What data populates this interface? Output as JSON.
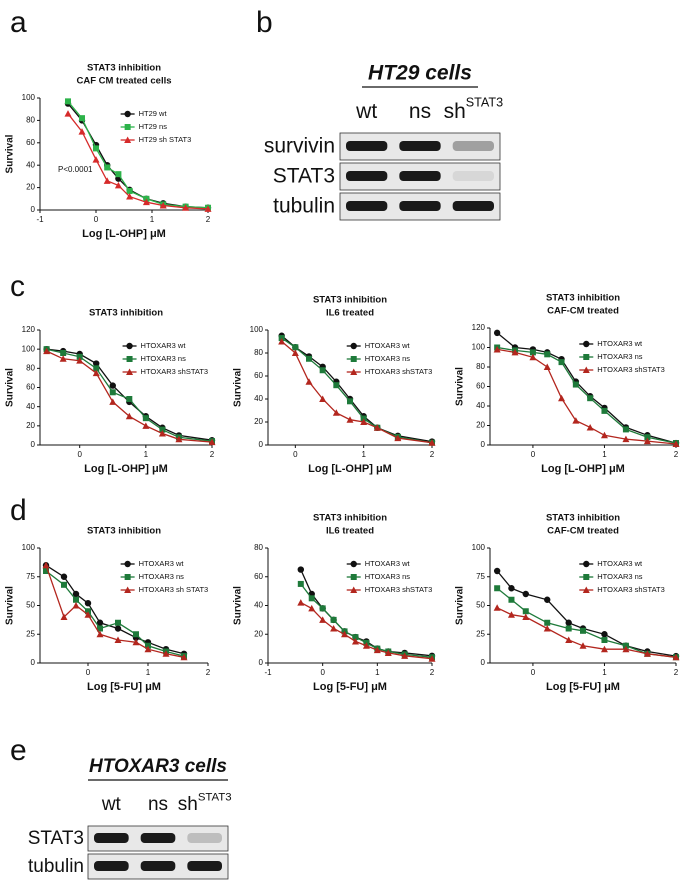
{
  "panels": [
    "a",
    "b",
    "c",
    "d",
    "e"
  ],
  "chart_data": [
    {
      "type": "line",
      "title": [
        "STAT3 inhibition",
        "CAF CM treated cells"
      ],
      "x_label": "Log [L-OHP] μM",
      "y_label": "Survival",
      "annotation": "P<0.0001",
      "x": [
        -0.5,
        -0.25,
        0,
        0.2,
        0.4,
        0.6,
        0.9,
        1.2,
        1.6,
        2.0
      ],
      "xlim": [
        -1,
        2
      ],
      "xticks": [
        -1,
        0,
        1,
        2
      ],
      "ylim": [
        0,
        100
      ],
      "yticks": [
        0,
        20,
        40,
        60,
        80,
        100
      ],
      "series": [
        {
          "name": "HT29 wt",
          "color": "#111111",
          "marker": "circle",
          "values": [
            95,
            80,
            58,
            40,
            28,
            18,
            10,
            6,
            3,
            2
          ]
        },
        {
          "name": "HT29 ns",
          "color": "#2db34a",
          "marker": "square",
          "values": [
            97,
            82,
            55,
            38,
            32,
            17,
            10,
            5,
            3,
            2
          ]
        },
        {
          "name": "HT29 sh STAT3",
          "color": "#d62a2a",
          "marker": "triangle",
          "values": [
            86,
            70,
            45,
            26,
            22,
            12,
            7,
            4,
            2,
            1
          ]
        }
      ]
    },
    {
      "type": "line",
      "title": [
        "STAT3 inhibition"
      ],
      "x_label": "Log [L-OHP] μM",
      "y_label": "Survival",
      "x": [
        -0.5,
        -0.25,
        0,
        0.25,
        0.5,
        0.75,
        1,
        1.25,
        1.5,
        2
      ],
      "xlim": [
        -0.6,
        2
      ],
      "xticks": [
        0,
        1,
        2
      ],
      "ylim": [
        0,
        120
      ],
      "yticks": [
        0,
        20,
        40,
        60,
        80,
        100,
        120
      ],
      "series": [
        {
          "name": "HTOXAR3 wt",
          "color": "#111111",
          "marker": "circle",
          "values": [
            100,
            98,
            95,
            85,
            62,
            45,
            30,
            18,
            10,
            5
          ]
        },
        {
          "name": "HTOXAR3 ns",
          "color": "#1e7a3a",
          "marker": "square",
          "values": [
            100,
            96,
            92,
            80,
            55,
            48,
            28,
            16,
            8,
            4
          ]
        },
        {
          "name": "HTOXAR3 shSTAT3",
          "color": "#b3261e",
          "marker": "triangle",
          "values": [
            98,
            90,
            88,
            75,
            45,
            30,
            20,
            12,
            6,
            3
          ]
        }
      ]
    },
    {
      "type": "line",
      "title": [
        "STAT3 inhibition",
        "IL6 treated"
      ],
      "x_label": "Log [L-OHP] μM",
      "y_label": "Survival",
      "x": [
        -0.2,
        0,
        0.2,
        0.4,
        0.6,
        0.8,
        1.0,
        1.2,
        1.5,
        2.0
      ],
      "xlim": [
        -0.4,
        2
      ],
      "xticks": [
        0,
        1,
        2
      ],
      "ylim": [
        0,
        100
      ],
      "yticks": [
        0,
        20,
        40,
        60,
        80,
        100
      ],
      "series": [
        {
          "name": "HTOXAR3 wt",
          "color": "#111111",
          "marker": "circle",
          "values": [
            95,
            85,
            77,
            68,
            55,
            40,
            25,
            15,
            8,
            3
          ]
        },
        {
          "name": "HTOXAR3 ns",
          "color": "#1e7a3a",
          "marker": "square",
          "values": [
            93,
            85,
            75,
            65,
            52,
            38,
            23,
            15,
            7,
            2
          ]
        },
        {
          "name": "HTOXAR3 shSTAT3",
          "color": "#b3261e",
          "marker": "triangle",
          "values": [
            90,
            80,
            55,
            40,
            28,
            22,
            20,
            15,
            6,
            2
          ]
        }
      ]
    },
    {
      "type": "line",
      "title": [
        "STAT3 inhibition",
        "CAF-CM treated"
      ],
      "x_label": "Log [L-OHP] μM",
      "y_label": "Survival",
      "x": [
        -0.5,
        -0.25,
        0,
        0.2,
        0.4,
        0.6,
        0.8,
        1.0,
        1.3,
        1.6,
        2.0
      ],
      "xlim": [
        -0.6,
        2
      ],
      "xticks": [
        0,
        1,
        2
      ],
      "ylim": [
        0,
        120
      ],
      "yticks": [
        0,
        20,
        40,
        60,
        80,
        100,
        120
      ],
      "series": [
        {
          "name": "HTOXAR3 wt",
          "color": "#111111",
          "marker": "circle",
          "values": [
            115,
            100,
            98,
            95,
            88,
            65,
            50,
            38,
            18,
            10,
            2
          ]
        },
        {
          "name": "HTOXAR3 ns",
          "color": "#1e7a3a",
          "marker": "square",
          "values": [
            100,
            97,
            95,
            93,
            85,
            62,
            48,
            35,
            16,
            8,
            2
          ]
        },
        {
          "name": "HTOXAR3 shSTAT3",
          "color": "#b3261e",
          "marker": "triangle",
          "values": [
            98,
            95,
            90,
            80,
            48,
            25,
            18,
            10,
            6,
            4,
            1
          ]
        }
      ]
    },
    {
      "type": "line",
      "title": [
        "STAT3 inhibition"
      ],
      "x_label": "Log [5-FU] μM",
      "y_label": "Survival",
      "x": [
        -0.7,
        -0.4,
        -0.2,
        0,
        0.2,
        0.5,
        0.8,
        1.0,
        1.3,
        1.6
      ],
      "xlim": [
        -0.8,
        2
      ],
      "xticks": [
        0,
        1,
        2
      ],
      "ylim": [
        0,
        100
      ],
      "yticks": [
        0,
        25,
        50,
        75,
        100
      ],
      "series": [
        {
          "name": "HTOXAR3 wt",
          "color": "#111111",
          "marker": "circle",
          "values": [
            85,
            75,
            60,
            52,
            35,
            30,
            22,
            18,
            12,
            8
          ]
        },
        {
          "name": "HTOXAR3 ns",
          "color": "#1e7a3a",
          "marker": "square",
          "values": [
            80,
            68,
            55,
            45,
            30,
            35,
            25,
            15,
            10,
            6
          ]
        },
        {
          "name": "HTOXAR3 sh STAT3",
          "color": "#b3261e",
          "marker": "triangle",
          "values": [
            85,
            40,
            50,
            42,
            25,
            20,
            18,
            12,
            8,
            5
          ]
        }
      ]
    },
    {
      "type": "line",
      "title": [
        "STAT3 inhibition",
        "IL6 treated"
      ],
      "x_label": "Log [5-FU] μM",
      "y_label": "Survival",
      "x": [
        -0.4,
        -0.2,
        0,
        0.2,
        0.4,
        0.6,
        0.8,
        1.0,
        1.2,
        1.5,
        2.0
      ],
      "xlim": [
        -1,
        2
      ],
      "xticks": [
        -1,
        0,
        1,
        2
      ],
      "ylim": [
        0,
        80
      ],
      "yticks": [
        0,
        20,
        40,
        60,
        80
      ],
      "series": [
        {
          "name": "HTOXAR3 wt",
          "color": "#111111",
          "marker": "circle",
          "values": [
            65,
            48,
            38,
            30,
            22,
            18,
            15,
            10,
            8,
            7,
            5
          ]
        },
        {
          "name": "HTOXAR3 ns",
          "color": "#1e7a3a",
          "marker": "square",
          "values": [
            55,
            45,
            38,
            30,
            22,
            18,
            14,
            10,
            8,
            6,
            4
          ]
        },
        {
          "name": "HTOXAR3 shSTAT3",
          "color": "#b3261e",
          "marker": "triangle",
          "values": [
            42,
            38,
            30,
            24,
            20,
            15,
            12,
            9,
            7,
            5,
            3
          ]
        }
      ]
    },
    {
      "type": "line",
      "title": [
        "STAT3 inhibition",
        "CAF-CM treated"
      ],
      "x_label": "Log [5-FU] μM",
      "y_label": "Survival",
      "x": [
        -0.5,
        -0.3,
        -0.1,
        0.2,
        0.5,
        0.7,
        1.0,
        1.3,
        1.6,
        2.0
      ],
      "xlim": [
        -0.6,
        2
      ],
      "xticks": [
        0,
        1,
        2
      ],
      "ylim": [
        0,
        100
      ],
      "yticks": [
        0,
        25,
        50,
        75,
        100
      ],
      "series": [
        {
          "name": "HTOXAR3 wt",
          "color": "#111111",
          "marker": "circle",
          "values": [
            80,
            65,
            60,
            55,
            35,
            30,
            25,
            15,
            10,
            6
          ]
        },
        {
          "name": "HTOXAR3 ns",
          "color": "#1e7a3a",
          "marker": "square",
          "values": [
            65,
            55,
            45,
            35,
            30,
            28,
            20,
            15,
            8,
            5
          ]
        },
        {
          "name": "HTOXAR3 shSTAT3",
          "color": "#b3261e",
          "marker": "triangle",
          "values": [
            48,
            42,
            40,
            30,
            20,
            15,
            12,
            12,
            8,
            5
          ]
        }
      ]
    }
  ],
  "blots": [
    {
      "title": "HT29 cells",
      "lanes": [
        {
          "label": "wt"
        },
        {
          "label": "ns"
        },
        {
          "label": "sh",
          "sup": "STAT3"
        }
      ],
      "rows": [
        "survivin",
        "STAT3",
        "tubulin"
      ]
    },
    {
      "title": "HTOXAR3 cells",
      "lanes": [
        {
          "label": "wt"
        },
        {
          "label": "ns"
        },
        {
          "label": "sh",
          "sup": "STAT3"
        }
      ],
      "rows": [
        "STAT3",
        "tubulin"
      ]
    }
  ]
}
